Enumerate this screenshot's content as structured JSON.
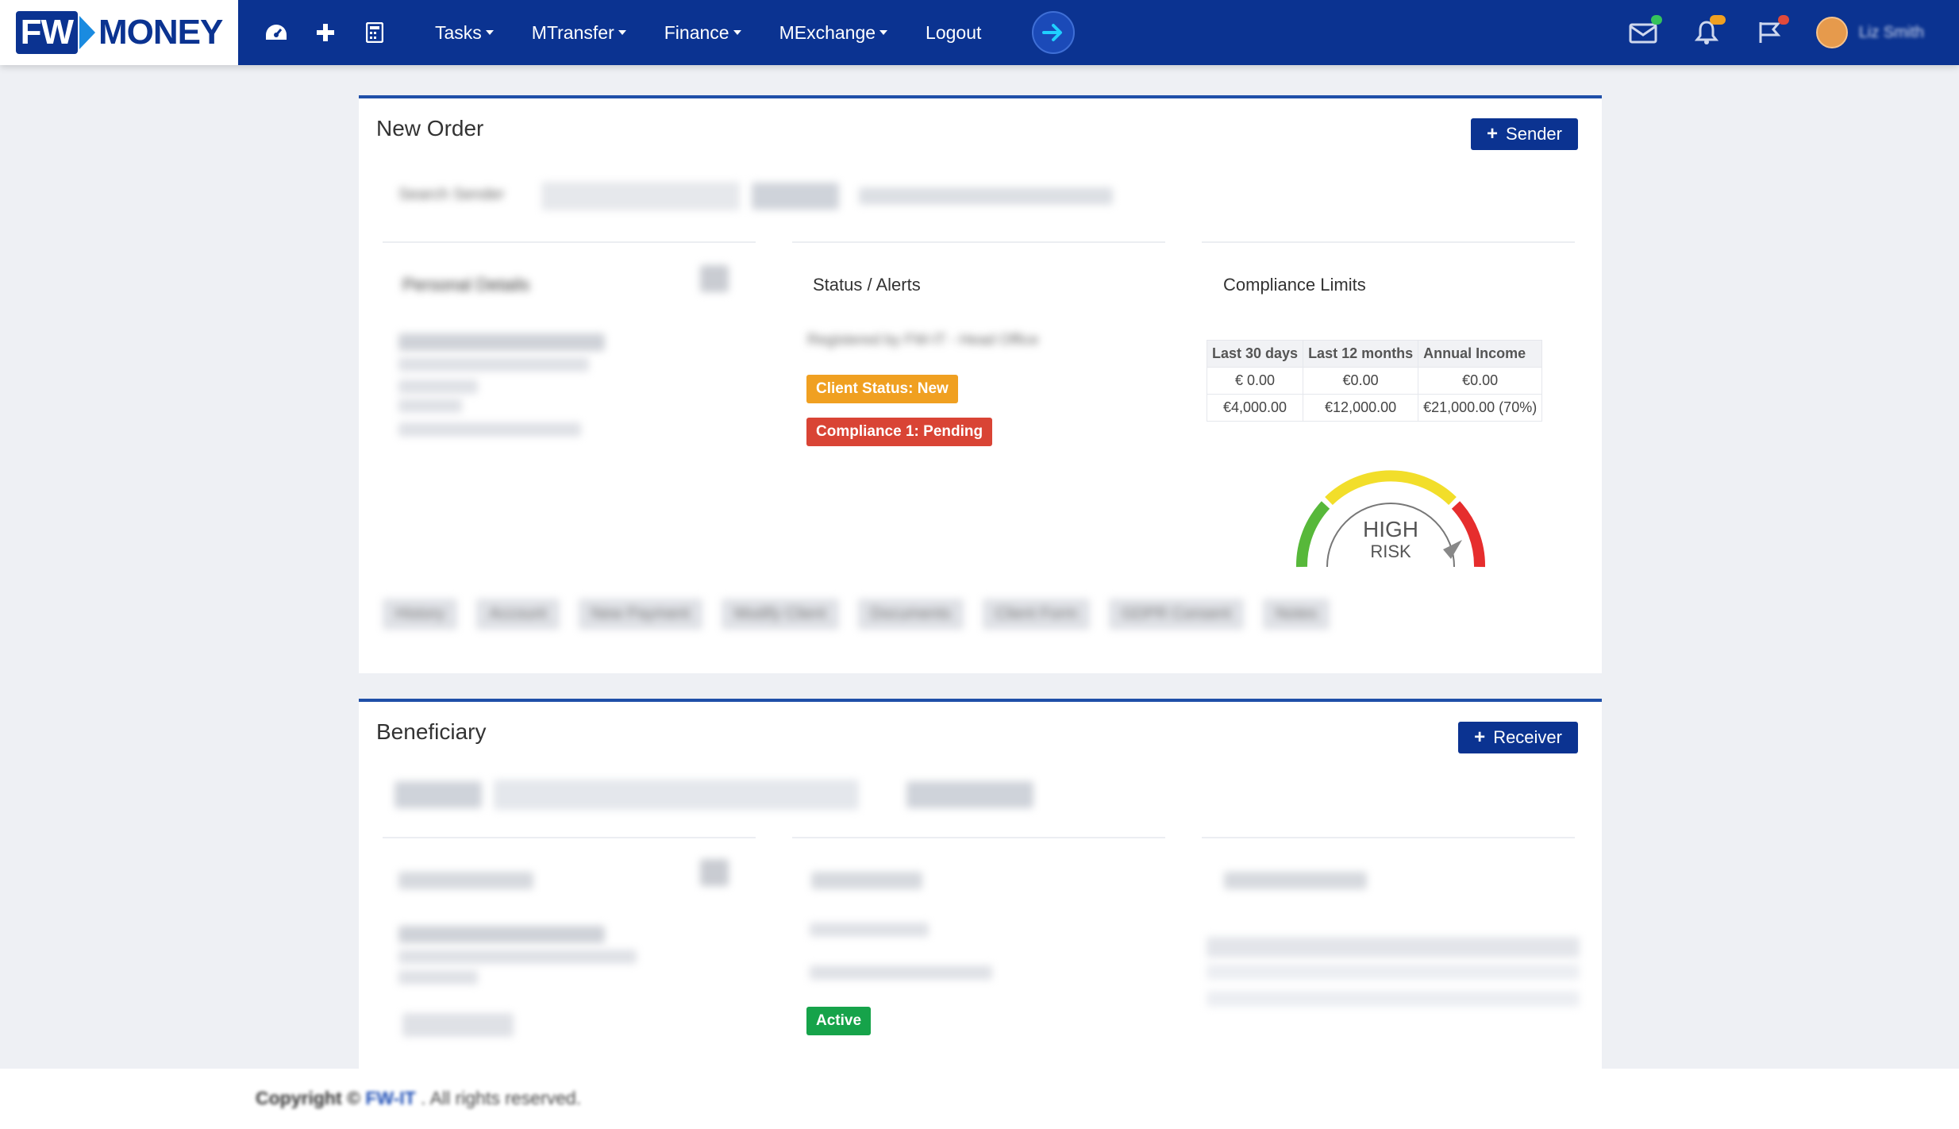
{
  "navbar": {
    "logo_fw": "FW",
    "logo_money": "MONEY",
    "menu": [
      {
        "label": "Tasks",
        "dropdown": true
      },
      {
        "label": "MTransfer",
        "dropdown": true
      },
      {
        "label": "Finance",
        "dropdown": true
      },
      {
        "label": "MExchange",
        "dropdown": true
      },
      {
        "label": "Logout",
        "dropdown": false
      }
    ],
    "icons": [
      "dashboard-icon",
      "plus-icon",
      "calculator-icon",
      "arrow-right-icon",
      "mail-icon",
      "bell-icon",
      "flag-icon"
    ],
    "user_name": "Liz Smith"
  },
  "order": {
    "title": "New Order",
    "add_button": "Sender",
    "search_label": "Search Sender",
    "personal_details_heading": "Personal Details",
    "status_heading": "Status / Alerts",
    "status_registered": "Registered by FW-IT - Head Office",
    "client_status": "Client Status: New",
    "compliance_status": "Compliance 1: Pending",
    "limits_heading": "Compliance Limits",
    "limits_table": {
      "headers": [
        "Last 30 days",
        "Last 12 months",
        "Annual Income"
      ],
      "rows": [
        [
          "€ 0.00",
          "€0.00",
          "€0.00"
        ],
        [
          "€4,000.00",
          "€12,000.00",
          "€21,000.00 (70%)"
        ]
      ]
    },
    "gauge": {
      "label_line1": "HIGH",
      "label_line2": "RISK"
    },
    "tabs": [
      "History",
      "Account",
      "New Payment",
      "Modify Client",
      "Documents",
      "Client Form",
      "GDPR Consent",
      "Notes"
    ]
  },
  "beneficiary": {
    "title": "Beneficiary",
    "add_button": "Receiver",
    "status_badge": "Active"
  },
  "footer": {
    "copyright": "Copyright ©",
    "company": "FW-IT",
    "rights": ". All rights reserved."
  },
  "colors": {
    "navbar": "#0b3391",
    "accent": "#1f4fa8",
    "warning": "#f0a021",
    "danger": "#d94435",
    "success": "#16a34a"
  }
}
